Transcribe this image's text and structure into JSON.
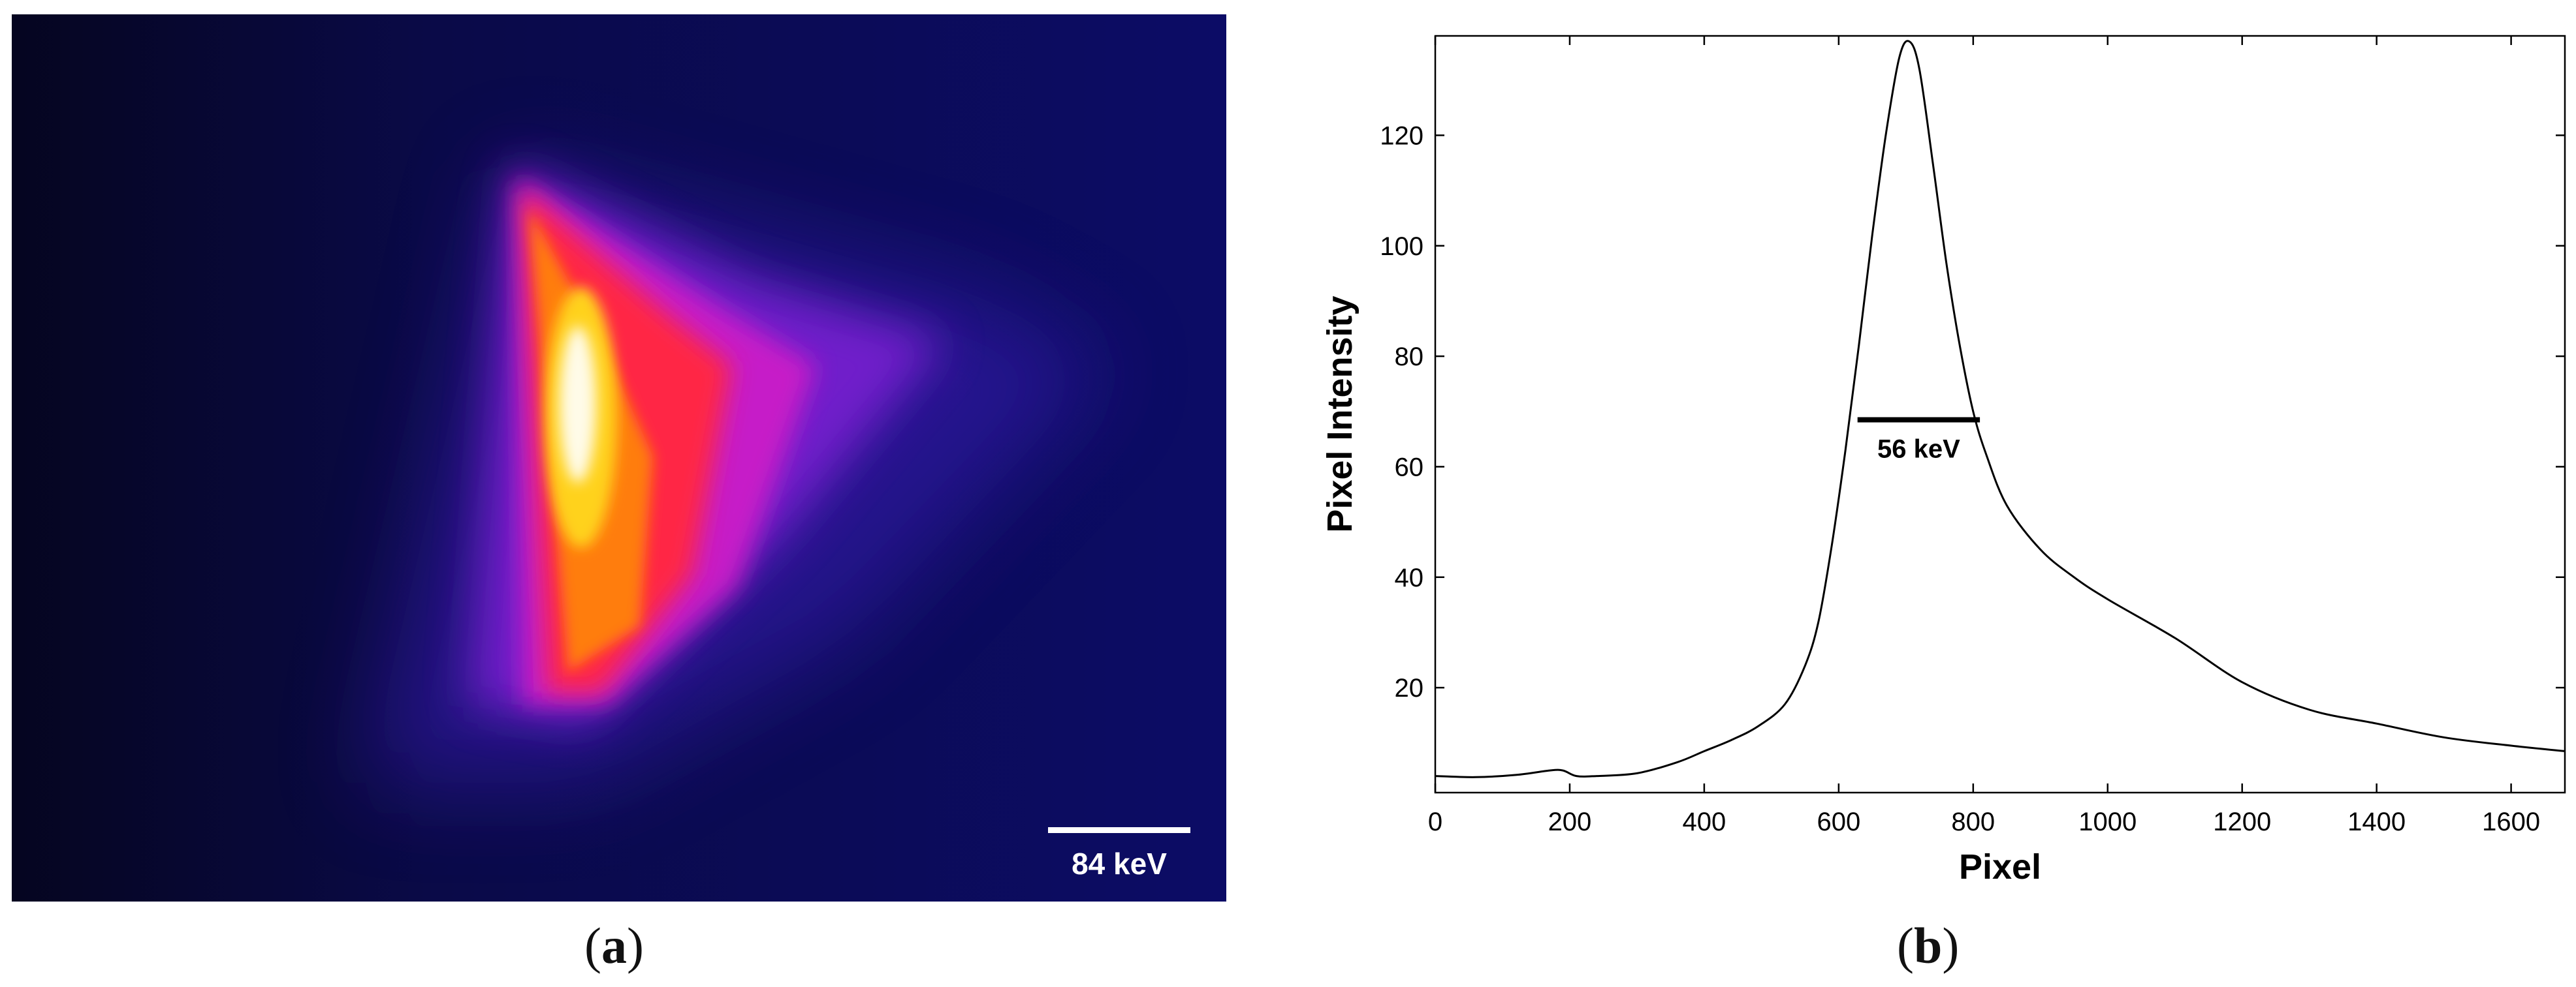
{
  "panel_a": {
    "caption_letter": "a",
    "scalebar_label": "84 keV",
    "colormap": [
      "#000018",
      "#1a0a8c",
      "#6a1bd8",
      "#c01fd0",
      "#ff1e3a",
      "#ff7a00",
      "#ffd200",
      "#fffff0"
    ],
    "background_color": "#0a0a55"
  },
  "panel_b": {
    "caption_letter": "b"
  },
  "chart_data": {
    "type": "line",
    "title": "",
    "xlabel": "Pixel",
    "ylabel": "Pixel Intensity",
    "xlim": [
      0,
      1680
    ],
    "ylim": [
      1,
      138
    ],
    "xticks": [
      0,
      200,
      400,
      600,
      800,
      1000,
      1200,
      1400,
      1600
    ],
    "yticks": [
      20,
      40,
      60,
      80,
      100,
      120
    ],
    "grid": false,
    "line_color": "#000000",
    "series": [
      {
        "x": [
          0,
          60,
          120,
          170,
          190,
          210,
          240,
          300,
          360,
          400,
          440,
          480,
          520,
          550,
          570,
          590,
          610,
          630,
          650,
          670,
          690,
          705,
          720,
          740,
          760,
          780,
          800,
          820,
          850,
          900,
          950,
          1000,
          1100,
          1200,
          1300,
          1400,
          1500,
          1600,
          1680
        ],
        "y": [
          4,
          3.8,
          4.2,
          5,
          5,
          4,
          4,
          4.5,
          6.5,
          8.5,
          10.5,
          13,
          17,
          24,
          32,
          46,
          63,
          82,
          102,
          120,
          134,
          137,
          132,
          115,
          97,
          82,
          70,
          62,
          53,
          45,
          40,
          36,
          29,
          21,
          16,
          13.5,
          11,
          9.5,
          8.5
        ]
      }
    ],
    "annotations": [
      {
        "label": "56 keV",
        "y": 68.5,
        "x_start": 628,
        "x_end": 810
      }
    ]
  }
}
